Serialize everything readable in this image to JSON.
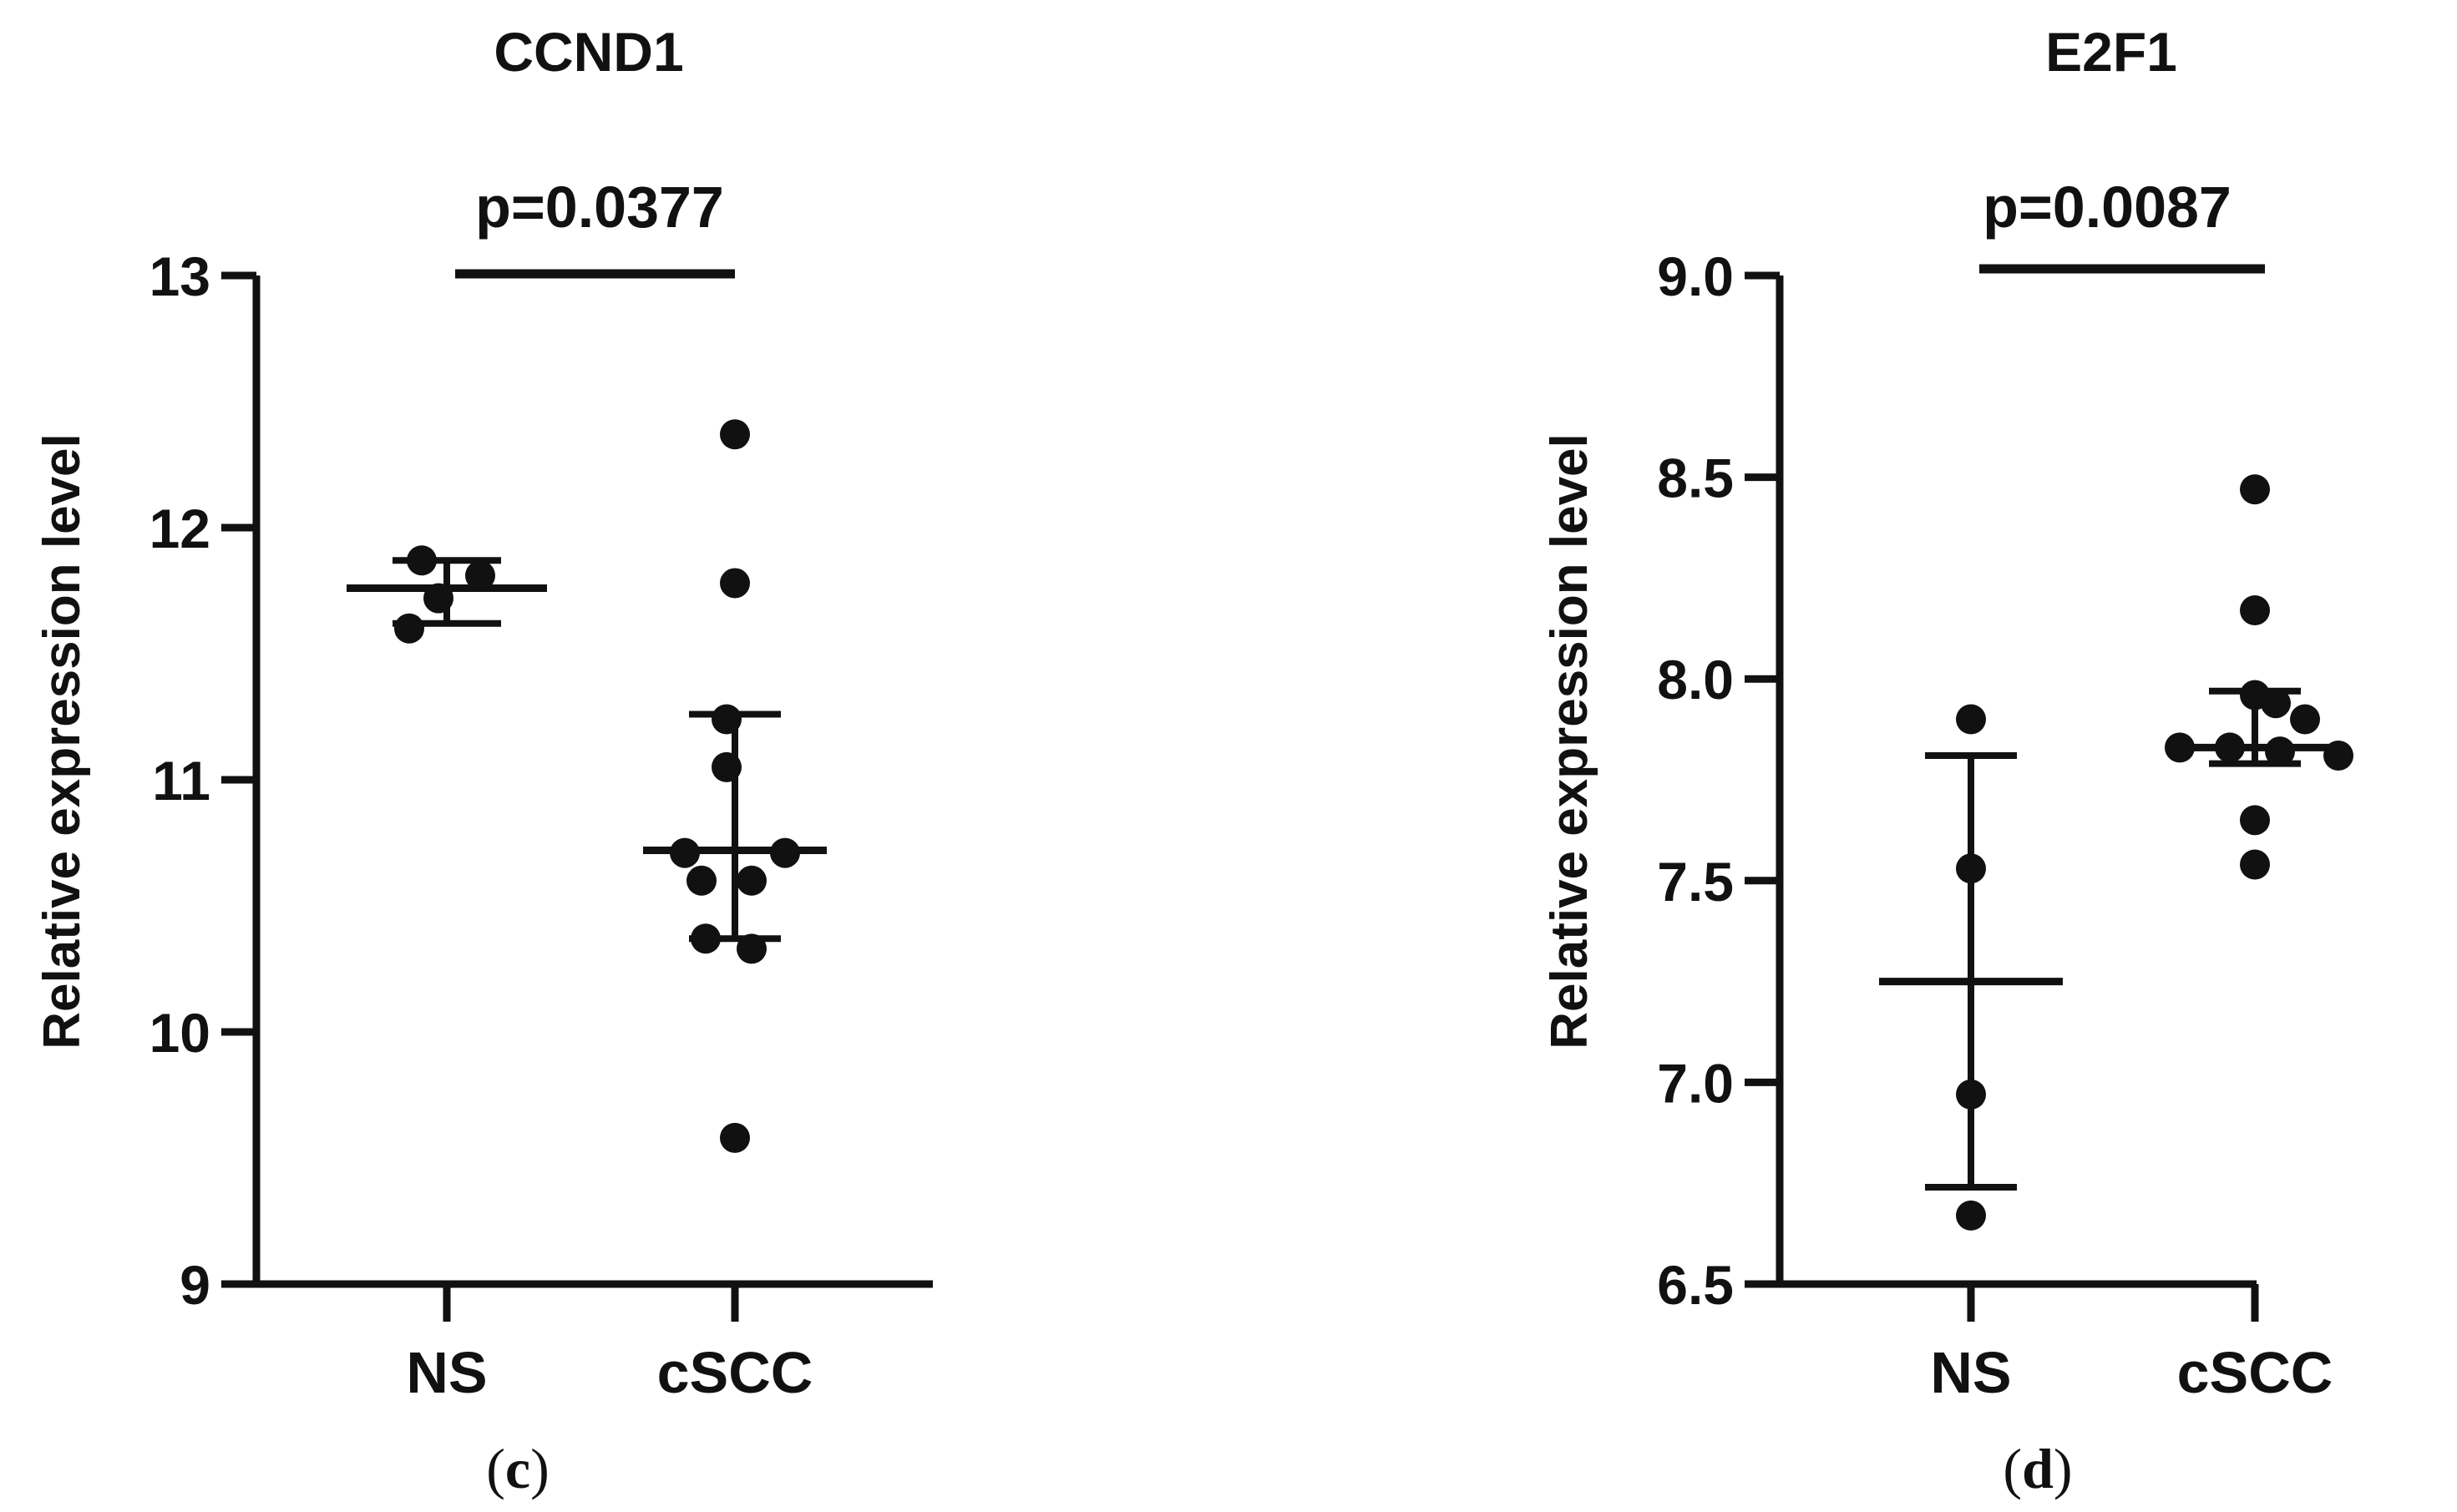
{
  "chart_data": [
    {
      "type": "scatter",
      "panel_label": "c",
      "title": "CCND1",
      "ylabel": "Relative expression level",
      "xlabel": "",
      "categories": [
        "NS",
        "cSCC"
      ],
      "ylim": [
        9,
        13
      ],
      "yticks": [
        9,
        10,
        11,
        12,
        13
      ],
      "ytick_labels": [
        "9",
        "10",
        "11",
        "12",
        "13"
      ],
      "significance": {
        "label": "p=0.0377",
        "from": "NS",
        "to": "cSCC"
      },
      "groups": [
        {
          "name": "NS",
          "points": [
            11.87,
            11.81,
            11.72,
            11.6
          ],
          "mean": 11.76,
          "sd_low": 11.62,
          "sd_high": 11.87
        },
        {
          "name": "cSCC",
          "points": [
            12.37,
            11.78,
            11.24,
            11.05,
            10.71,
            10.71,
            10.6,
            10.6,
            10.37,
            10.33,
            9.58
          ],
          "mean": 10.72,
          "sd_low": 10.37,
          "sd_high": 11.26
        }
      ]
    },
    {
      "type": "scatter",
      "panel_label": "d",
      "title": "E2F1",
      "ylabel": "Relative expression level",
      "xlabel": "",
      "categories": [
        "NS",
        "cSCC"
      ],
      "ylim": [
        6.5,
        9.0
      ],
      "yticks": [
        6.5,
        7.0,
        7.5,
        8.0,
        8.5,
        9.0
      ],
      "ytick_labels": [
        "6.5",
        "7.0",
        "7.5",
        "8.0",
        "8.5",
        "9.0"
      ],
      "significance": {
        "label": "p=0.0087",
        "from": "NS",
        "to": "cSCC"
      },
      "groups": [
        {
          "name": "NS",
          "points": [
            7.9,
            7.53,
            6.97,
            6.67
          ],
          "mean": 7.25,
          "sd_low": 6.74,
          "sd_high": 7.81
        },
        {
          "name": "cSCC",
          "points": [
            8.47,
            8.17,
            7.96,
            7.94,
            7.9,
            7.83,
            7.83,
            7.81,
            7.82,
            7.65,
            7.54
          ],
          "mean": 7.83,
          "sd_low": 7.79,
          "sd_high": 7.97
        }
      ]
    }
  ]
}
